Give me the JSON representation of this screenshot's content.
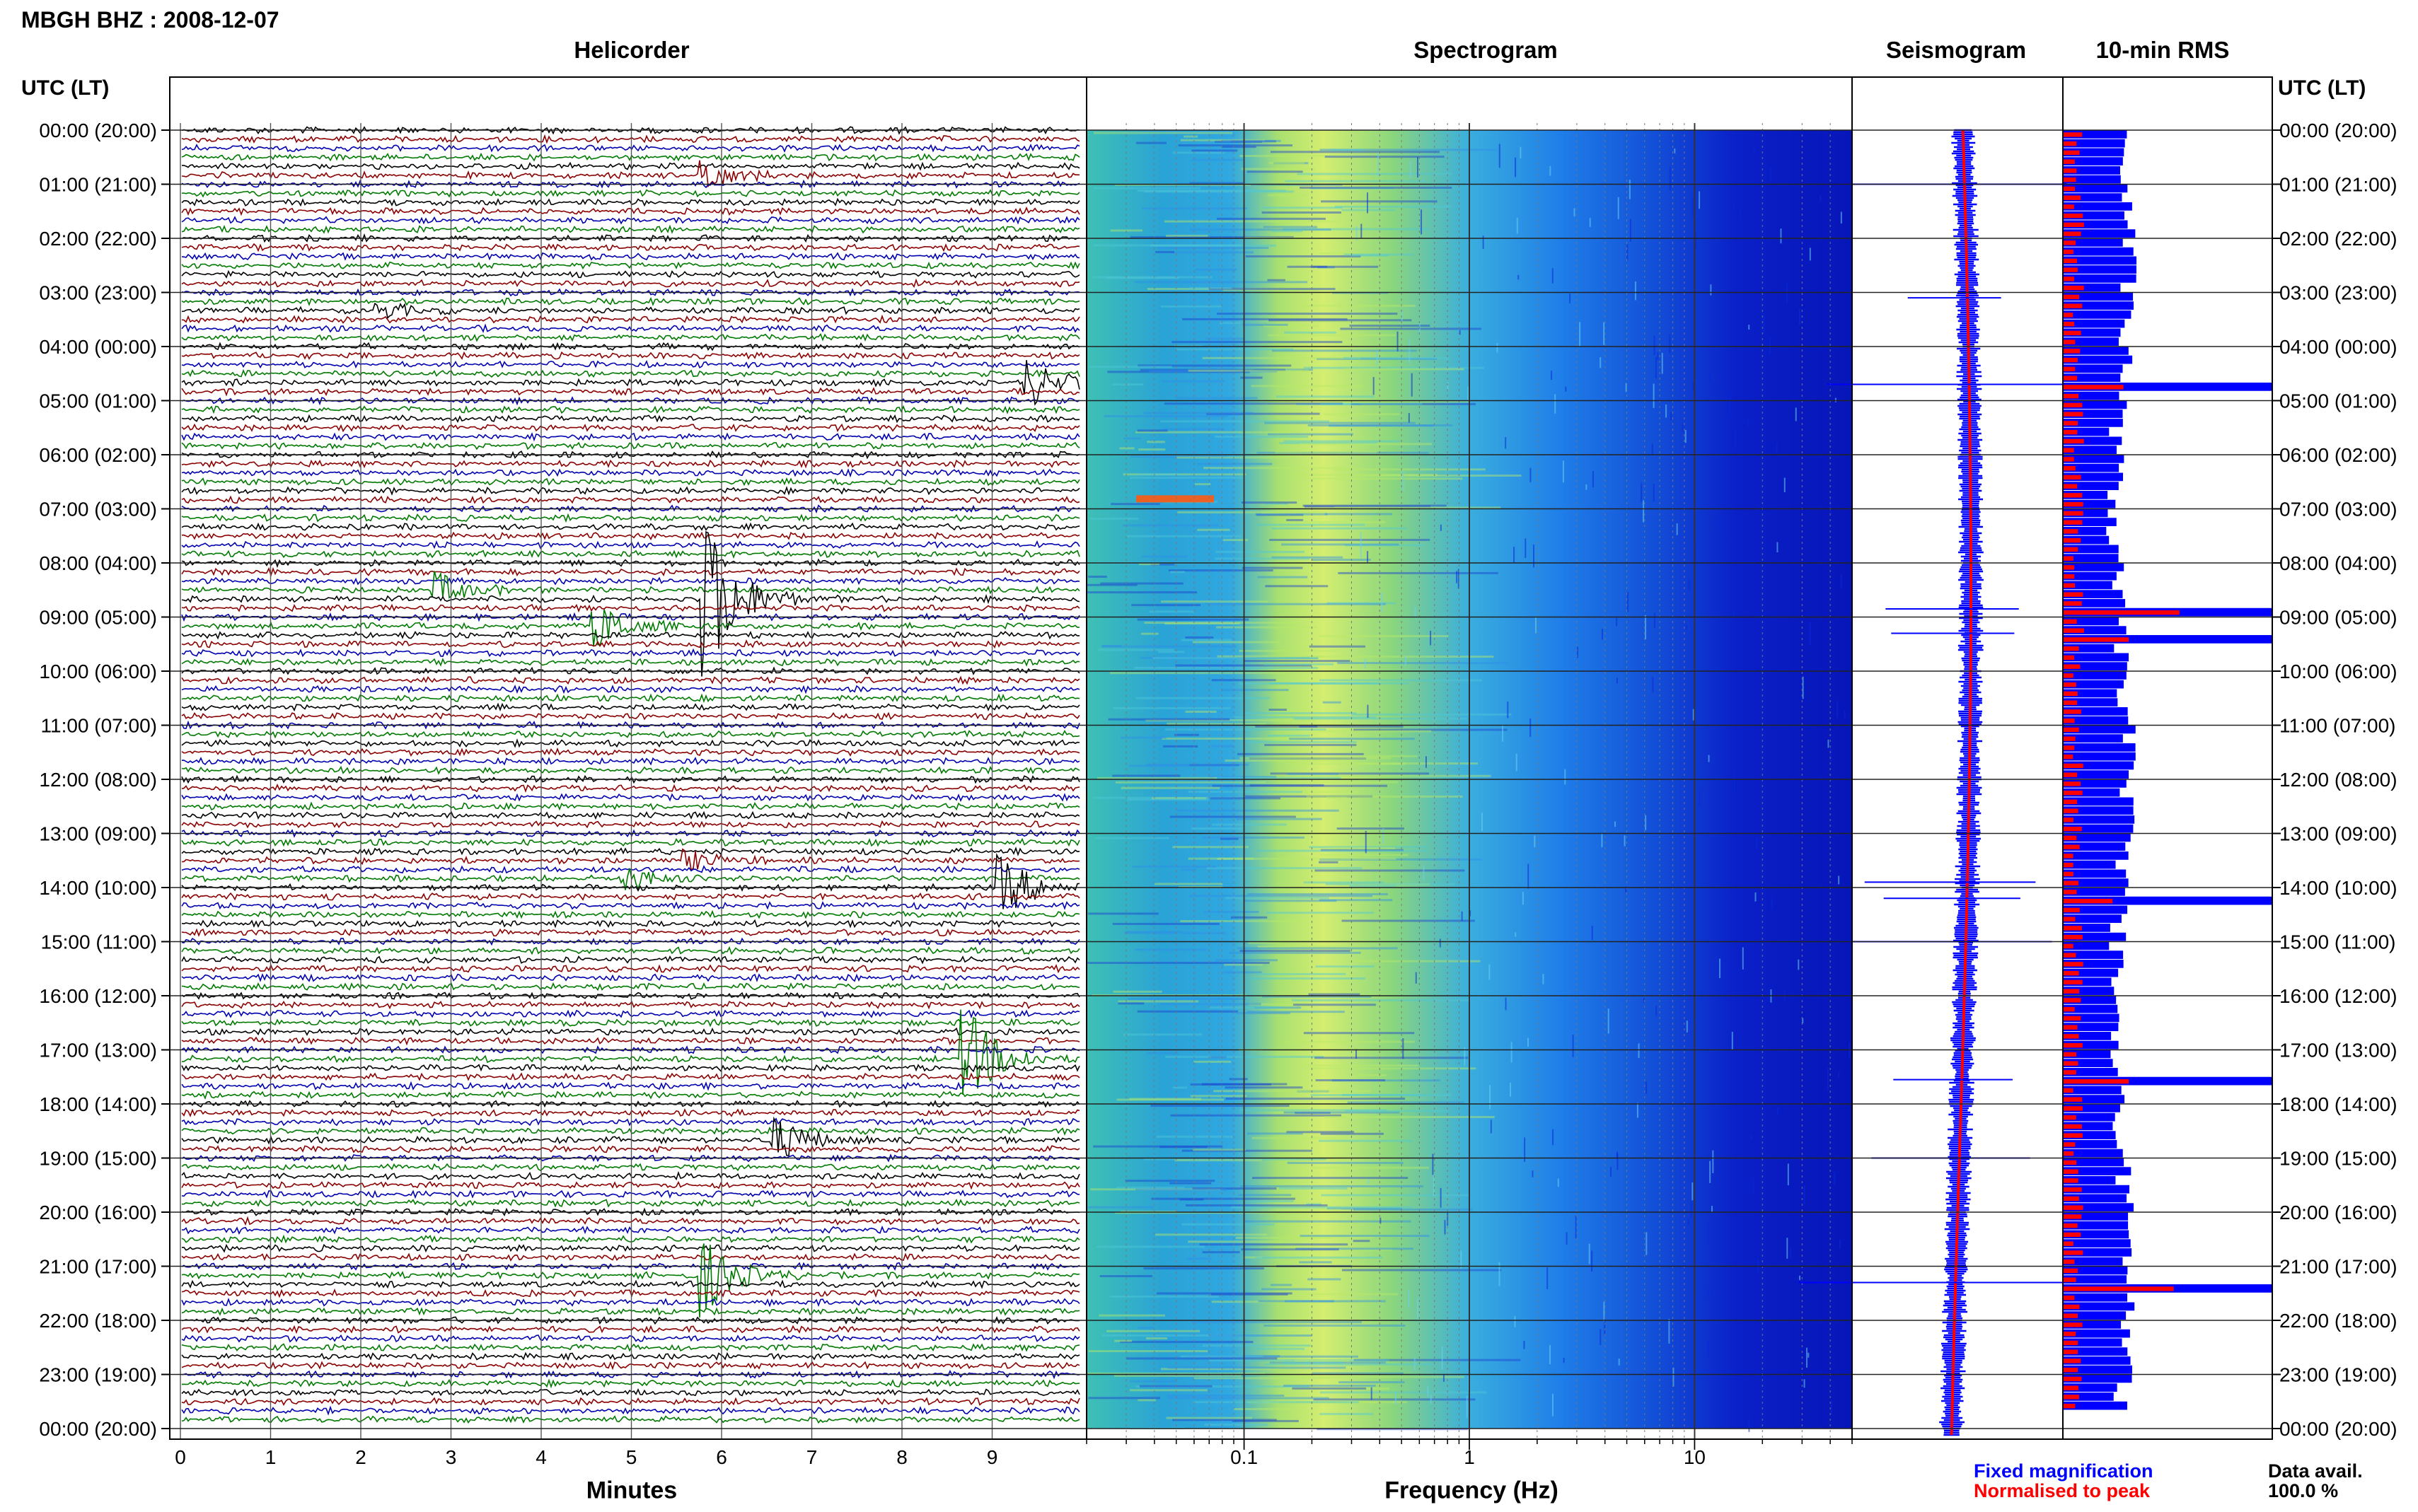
{
  "title": "MBGH BHZ : 2008-12-07",
  "panels": {
    "helicorder": "Helicorder",
    "spectrogram": "Spectrogram",
    "seismogram": "Seismogram",
    "rms": "10-min RMS"
  },
  "axis_headers": {
    "left": "UTC (LT)",
    "right": "UTC (LT)"
  },
  "x_labels": {
    "helicorder": "Minutes",
    "spectrogram": "Frequency (Hz)"
  },
  "legend": {
    "fixed": "Fixed magnification",
    "normalised": "Normalised to peak",
    "data_avail_label": "Data avail.",
    "data_avail_value": "100.0 %"
  },
  "colors": {
    "trace_cycle": [
      "#000000",
      "#8b0000",
      "#0000b0",
      "#007a00"
    ],
    "fixed": "#0000ff",
    "normalised": "#ff0000"
  },
  "chart_data": [
    {
      "type": "line",
      "panel": "helicorder",
      "title": "Helicorder",
      "xlabel": "Minutes",
      "x_ticks": [
        "0",
        "1",
        "2",
        "3",
        "4",
        "5",
        "6",
        "7",
        "8",
        "9"
      ],
      "xlim": [
        0,
        10
      ],
      "y_ticks": [
        "00:00 (20:00)",
        "01:00 (21:00)",
        "02:00 (22:00)",
        "03:00 (23:00)",
        "04:00 (00:00)",
        "05:00 (01:00)",
        "06:00 (02:00)",
        "07:00 (03:00)",
        "08:00 (04:00)",
        "09:00 (05:00)",
        "10:00 (06:00)",
        "11:00 (07:00)",
        "12:00 (08:00)",
        "13:00 (09:00)",
        "14:00 (10:00)",
        "15:00 (11:00)",
        "16:00 (12:00)",
        "17:00 (13:00)",
        "18:00 (14:00)",
        "19:00 (15:00)",
        "20:00 (16:00)",
        "21:00 (17:00)",
        "22:00 (18:00)",
        "23:00 (19:00)",
        "00:00 (20:00)"
      ],
      "events": [
        {
          "row_hour": 0.9,
          "minute": 5.8,
          "amp": 0.6
        },
        {
          "row_hour": 3.3,
          "minute": 2.2,
          "amp": 0.3
        },
        {
          "row_hour": 4.7,
          "minute": 9.4,
          "amp": 0.9
        },
        {
          "row_hour": 8.5,
          "minute": 2.8,
          "amp": 0.7
        },
        {
          "row_hour": 8.7,
          "minute": 5.8,
          "amp": 3.5
        },
        {
          "row_hour": 9.2,
          "minute": 4.6,
          "amp": 0.9
        },
        {
          "row_hour": 13.5,
          "minute": 5.6,
          "amp": 0.4
        },
        {
          "row_hour": 13.9,
          "minute": 4.9,
          "amp": 0.5
        },
        {
          "row_hour": 14.0,
          "minute": 9.1,
          "amp": 1.2
        },
        {
          "row_hour": 17.2,
          "minute": 8.7,
          "amp": 2.0
        },
        {
          "row_hour": 18.6,
          "minute": 6.6,
          "amp": 0.9
        },
        {
          "row_hour": 21.2,
          "minute": 5.8,
          "amp": 1.5
        }
      ]
    },
    {
      "type": "heatmap",
      "panel": "spectrogram",
      "title": "Spectrogram",
      "xlabel": "Frequency (Hz)",
      "x_scale": "log",
      "xlim": [
        0.02,
        50
      ],
      "x_ticks": [
        "0.1",
        "1",
        "10"
      ]
    },
    {
      "type": "line",
      "panel": "seismogram",
      "title": "Seismogram",
      "series": [
        {
          "name": "Fixed magnification"
        },
        {
          "name": "Normalised to peak"
        }
      ]
    },
    {
      "type": "bar",
      "panel": "rms",
      "title": "10-min RMS",
      "series": [
        {
          "name": "Fixed magnification"
        },
        {
          "name": "Normalised to peak"
        }
      ],
      "spikes_hours": [
        4.7,
        8.85,
        9.3,
        14.2,
        17.55,
        21.3
      ]
    }
  ]
}
